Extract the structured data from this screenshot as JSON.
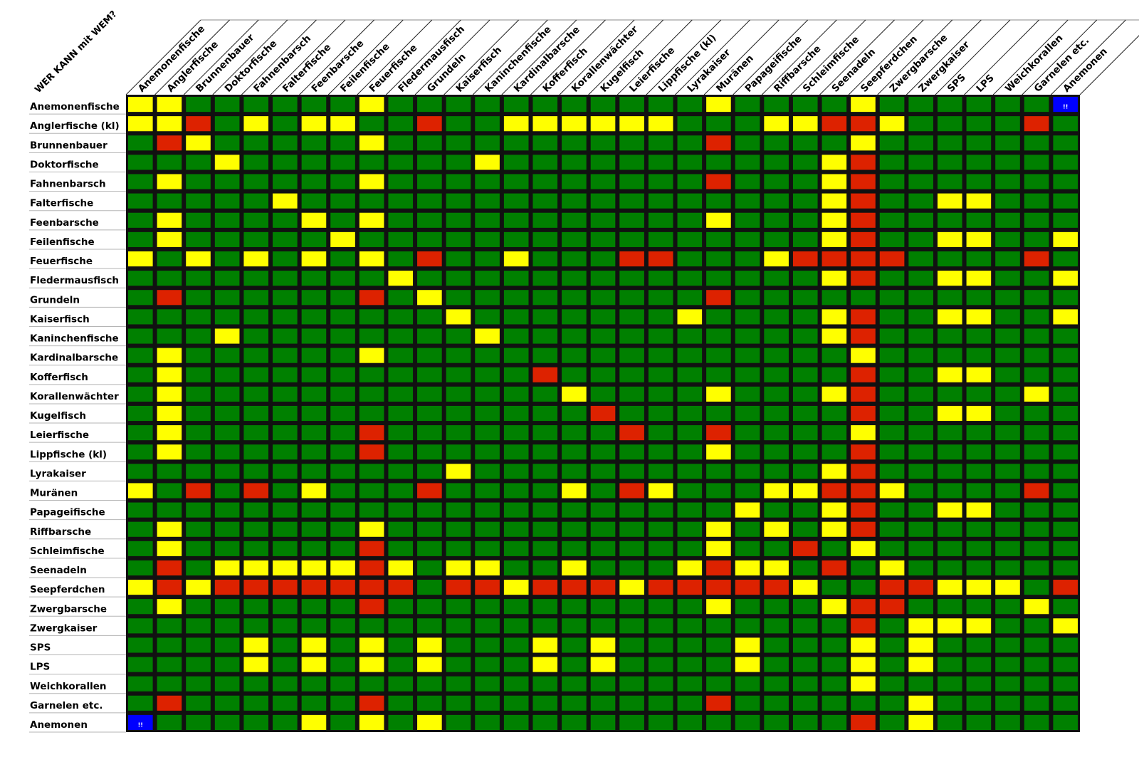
{
  "chart_data": {
    "type": "heatmap",
    "title": "WER KANN mit WEM?",
    "rows": [
      "Anemonenfische",
      "Anglerfische (kl)",
      "Brunnenbauer",
      "Doktorfische",
      "Fahnenbarsch",
      "Falterfische",
      "Feenbarsche",
      "Feilenfische",
      "Feuerfische",
      "Fledermausfisch",
      "Grundeln",
      "Kaiserfisch",
      "Kaninchenfische",
      "Kardinalbarsche",
      "Kofferfisch",
      "Korallenwächter",
      "Kugelfisch",
      "Leierfische",
      "Lippfische (kl)",
      "Lyrakaiser",
      "Muränen",
      "Papageifische",
      "Riffbarsche",
      "Schleimfische",
      "Seenadeln",
      "Seepferdchen",
      "Zwergbarsche",
      "Zwergkaiser",
      "SPS",
      "LPS",
      "Weichkorallen",
      "Garnelen etc.",
      "Anemonen"
    ],
    "columns": [
      "Anemonenfische",
      "Anglerfische",
      "Brunnenbauer",
      "Doktorfische",
      "Fahnenbarsch",
      "Falterfische",
      "Feenbarsche",
      "Feilenfische",
      "Feuerfische",
      "Fledermausfisch",
      "Grundeln",
      "Kaiserfisch",
      "Kaninchenfische",
      "Kardinalbarsche",
      "Kofferfisch",
      "Korallenwächter",
      "Kugelfisch",
      "Leierfische",
      "Lippfische (kl)",
      "Lyrakaiser",
      "Muränen",
      "Papageifische",
      "Riffbarsche",
      "Schleimfische",
      "Seenadeln",
      "Seepferdchen",
      "Zwergbarsche",
      "Zwergkaiser",
      "SPS",
      "LPS",
      "Weichkorallen",
      "Garnelen etc.",
      "Anemonen"
    ],
    "legend_codes": {
      "G": "green",
      "Y": "yellow",
      "R": "red",
      "B": "blue"
    },
    "colors": {
      "G": "#008000",
      "Y": "#ffff00",
      "R": "#dd2200",
      "B": "#0000ff",
      "border": "#111111"
    },
    "special_cell_text": "!!",
    "matrix": [
      "YYGGGGGGYGGGGGGGGGGGYGGGGYGGGGGGB",
      "YYRGYGYYGGRGGYYYYYYGGGYYRRYGGGGRG",
      "GRYGGGGGYGGGGGGGGGGGRGGGGYGGGGGGG",
      "GGGYGGGGGGGGYGGGGGGGGGGGYRGGGGGGG",
      "GYGGGGGGYGGGGGGGGGGGRGGGYRGGGGGGG",
      "GGGGGYGGGGGGGGGGGGGGGGGGYRGGYYGGG",
      "GYGGGGYGYGGGGGGGGGGGYGGGYRGGGGGGG",
      "GYGGGGGYGGGGGGGGGGGGGGGGYRGGYYGGY",
      "YGYGYGYGYGRGGYGGGRRGGGYRRRRGGGGRG",
      "GGGGGGGGGYGGGGGGGGGGGGGGYRGGYYGGY",
      "GRGGGGGGRGYGGGGGGGGGRGGGGGGGGGGGG",
      "GGGGGGGGGGGYGGGGGGGYGGGGYRGGYYGGY",
      "GGGYGGGGGGGGYGGGGGGGGGGGYRGGGGGGG",
      "GYGGGGGGYGGGGGGGGGGGGGGGGYGGGGGGG",
      "GYGGGGGGGGGGGGRGGGGGGGGGGRGGYYGGG",
      "GYGGGGGGGGGGGGGYGGGGYGGGYRGGGGGYG",
      "GYGGGGGGGGGGGGGGRGGGGGGGGRGGYYGGG",
      "GYGGGGGGRGGGGGGGGRGGRGGGGYGGGGGGG",
      "GYGGGGGGRGGGGGGGGGGGYGGGGRGGGGGGG",
      "GGGGGGGGGGGYGGGGGGGGGGGGYRGGGGGGG",
      "YGRGRGYGGGRGGGGYGRYGGGYYRRYGGGGRG",
      "GGGGGGGGGGGGGGGGGGGGGYGGYRGGYYGGG",
      "GYGGGGGGYGGGGGGGGGGGYGYGYRGGGGGGG",
      "GYGGGGGGRGGGGGGGGGGGYGGRGYGGGGGGG",
      "GRGYYYYYRYGYYGGYGGGYRYYGRGYGGGGGG",
      "YRYRRRRRRRGRRYRRRYRRRRRYGGRRYYYGR",
      "GYGGGGGGRGGGGGGGGGGGYGGGYRRGGGGYG",
      "GGGGGGGGGGGGGGGGGGGGGGGGGRGYYYGGY",
      "GGGGYGYGYGYGGGYGYGGGGYGGGYGYGGGGG",
      "GGGGYGYGYGYGGGYGYGGGGYGGGYGYGGGGG",
      "GGGGGGGGGGGGGGGGGGGGGGGGGYGGGGGGG",
      "GRGGGGGGRGGGGGGGGGGGRGGGGGGYGGGGG",
      "BGGGGGYGYGYGGGGGGGGGGGGGGRGYGGGGG"
    ]
  }
}
